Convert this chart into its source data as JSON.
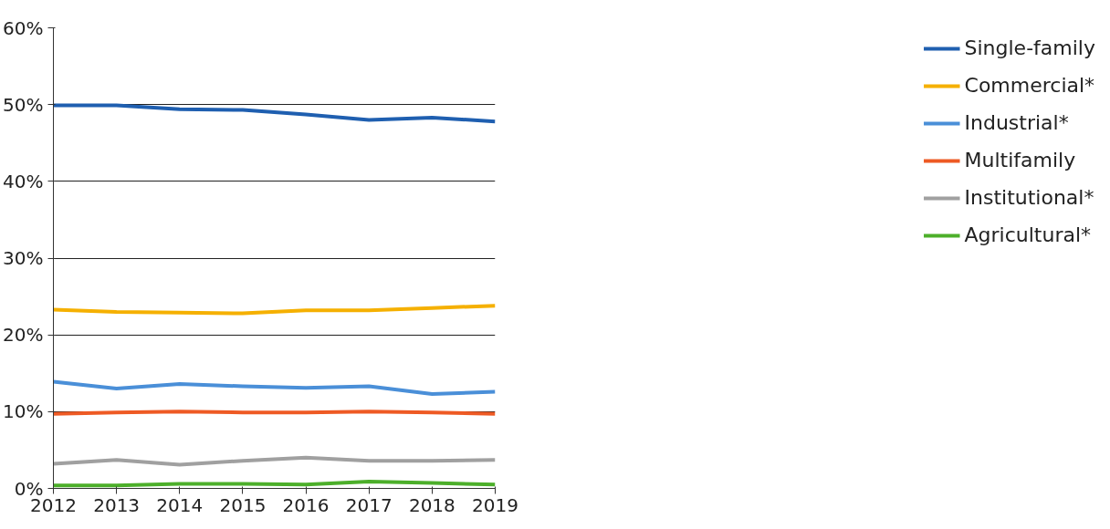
{
  "chart_data": {
    "type": "line",
    "x": [
      2012,
      2013,
      2014,
      2015,
      2016,
      2017,
      2018,
      2019
    ],
    "xlim": [
      2012,
      2019
    ],
    "xticks": [
      2012,
      2013,
      2014,
      2015,
      2016,
      2017,
      2018,
      2019
    ],
    "ylim": [
      0,
      60
    ],
    "yticks": [
      {
        "value": 0,
        "label": "0%"
      },
      {
        "value": 10,
        "label": "10%"
      },
      {
        "value": 20,
        "label": "20%"
      },
      {
        "value": 30,
        "label": "30%"
      },
      {
        "value": 40,
        "label": "40%"
      },
      {
        "value": 50,
        "label": "50%"
      },
      {
        "value": 60,
        "label": "60%"
      }
    ],
    "grid": "y",
    "legend": "right",
    "marker": "none",
    "line_style": "solid",
    "series": [
      {
        "name": "Single-family",
        "color": "#1f5fb0",
        "values": [
          49.9,
          49.9,
          49.4,
          49.3,
          48.7,
          48.0,
          48.3,
          47.8
        ]
      },
      {
        "name": "Commercial*",
        "color": "#f5b000",
        "values": [
          23.3,
          23.0,
          22.9,
          22.8,
          23.2,
          23.2,
          23.5,
          23.8
        ]
      },
      {
        "name": "Industrial*",
        "color": "#4a8fd8",
        "values": [
          13.9,
          13.0,
          13.6,
          13.3,
          13.1,
          13.3,
          12.3,
          12.6
        ]
      },
      {
        "name": "Multifamily",
        "color": "#ee5a24",
        "values": [
          9.7,
          9.9,
          10.0,
          9.9,
          9.9,
          10.0,
          9.9,
          9.7
        ]
      },
      {
        "name": "Institutional*",
        "color": "#a0a0a0",
        "values": [
          3.2,
          3.7,
          3.1,
          3.6,
          4.0,
          3.6,
          3.6,
          3.7
        ]
      },
      {
        "name": "Agricultural*",
        "color": "#4caf2a",
        "values": [
          0.4,
          0.4,
          0.6,
          0.6,
          0.5,
          0.9,
          0.7,
          0.5
        ]
      }
    ]
  }
}
